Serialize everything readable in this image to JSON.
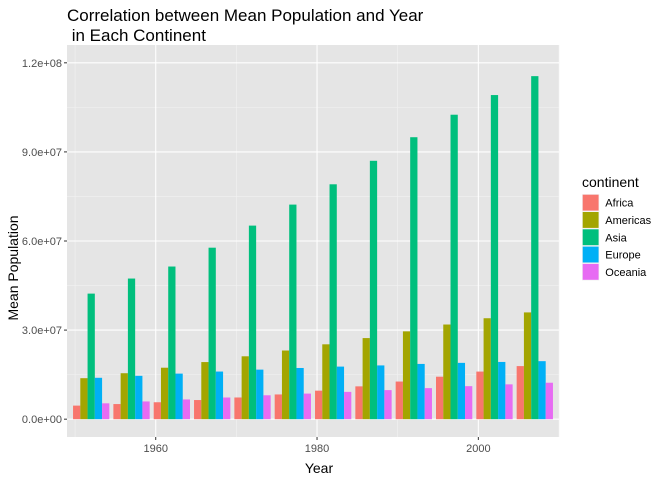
{
  "chart_data": {
    "type": "bar",
    "title": [
      "Correlation between Mean Population and Year",
      " in Each Continent"
    ],
    "xlabel": "Year",
    "ylabel": "Mean Population",
    "x": [
      1952,
      1957,
      1962,
      1967,
      1972,
      1977,
      1982,
      1987,
      1992,
      1997,
      2002,
      2007
    ],
    "xlim": [
      1949,
      2010
    ],
    "ylim": [
      -6000000,
      126000000
    ],
    "x_ticks": [
      1960,
      1980,
      2000
    ],
    "x_tick_labels": [
      "1960",
      "1980",
      "2000"
    ],
    "y_ticks": [
      0,
      30000000,
      60000000,
      90000000,
      120000000
    ],
    "y_tick_labels": [
      "0.0e+00",
      "3.0e+07",
      "6.0e+07",
      "9.0e+07",
      "1.2e+08"
    ],
    "grid": true,
    "background": "#e5e5e5",
    "legend": {
      "title": "continent",
      "position": "right"
    },
    "series": [
      {
        "name": "Africa",
        "color": "#F8766D",
        "values": [
          4570010,
          5093033,
          5702247,
          6447875,
          7305376,
          8328097,
          9602857,
          11054502,
          12674645,
          14304480,
          16033152,
          17875763
        ]
      },
      {
        "name": "Americas",
        "color": "#A3A500",
        "values": [
          13806098,
          15478157,
          17330810,
          19229865,
          21175368,
          23122708,
          25211637,
          27310159,
          29570964,
          31876016,
          33990910,
          35954847
        ]
      },
      {
        "name": "Asia",
        "color": "#00BF7D",
        "values": [
          42283556,
          47356988,
          51404763,
          57747361,
          65180977,
          72257987,
          79095018,
          87006690,
          94948248,
          102523803,
          109145521,
          115513752
        ]
      },
      {
        "name": "Europe",
        "color": "#00B0F6",
        "values": [
          13937362,
          14596345,
          15345172,
          16039299,
          16687835,
          17238818,
          17708897,
          18103139,
          18604760,
          18964805,
          19274129,
          19536618
        ]
      },
      {
        "name": "Oceania",
        "color": "#E76BF3",
        "values": [
          5343003,
          5970988,
          6641759,
          7300207,
          8053050,
          8619500,
          9197425,
          9787208,
          10459826,
          11120715,
          11727414,
          12274974
        ]
      }
    ]
  }
}
